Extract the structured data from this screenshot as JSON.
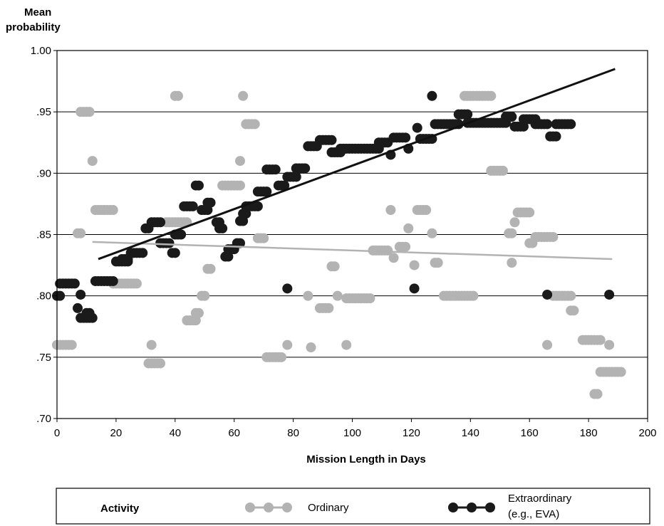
{
  "chart_data": {
    "type": "scatter",
    "title": "",
    "ylabel_line1": "Mean",
    "ylabel_line2": "probability",
    "xlabel": "Mission Length in Days",
    "xlim": [
      0,
      200
    ],
    "ylim": [
      0.7,
      1.0
    ],
    "x_ticks": [
      0,
      20,
      40,
      60,
      80,
      100,
      120,
      140,
      160,
      180,
      200
    ],
    "y_ticks": [
      0.7,
      0.75,
      0.8,
      0.85,
      0.9,
      0.95,
      1.0
    ],
    "x_tick_labels": [
      "0",
      "20",
      "40",
      "60",
      "80",
      "100",
      "120",
      "140",
      "160",
      "180",
      "200"
    ],
    "y_tick_labels": [
      ".70",
      ".75",
      ".80",
      ".85",
      ".90",
      ".95",
      "1.00"
    ],
    "grid": "horizontal",
    "legend": {
      "placement": "bottom",
      "title": "Activity",
      "ordinary_label": "Ordinary",
      "extraordinary_label_line1": "Extraordinary",
      "extraordinary_label_line2": "(e.g., EVA)"
    },
    "colors": {
      "ordinary": "#b3b3b3",
      "extraordinary": "#1a1a1a"
    },
    "series": [
      {
        "name": "Ordinary",
        "runs": [
          [
            0,
            5,
            0.76
          ],
          [
            8,
            11,
            0.95
          ],
          [
            7,
            8,
            0.851
          ],
          [
            12,
            12,
            0.91
          ],
          [
            13,
            19,
            0.87
          ],
          [
            19,
            27,
            0.81
          ],
          [
            31,
            35,
            0.745
          ],
          [
            32,
            32,
            0.76
          ],
          [
            40,
            41,
            0.963
          ],
          [
            37,
            44,
            0.86
          ],
          [
            44,
            47,
            0.78
          ],
          [
            47,
            48,
            0.786
          ],
          [
            49,
            50,
            0.8
          ],
          [
            51,
            52,
            0.822
          ],
          [
            56,
            62,
            0.89
          ],
          [
            62,
            62,
            0.91
          ],
          [
            63,
            63,
            0.963
          ],
          [
            64,
            67,
            0.94
          ],
          [
            68,
            70,
            0.847
          ],
          [
            71,
            76,
            0.75
          ],
          [
            78,
            78,
            0.76
          ],
          [
            85,
            85,
            0.8
          ],
          [
            86,
            86,
            0.758
          ],
          [
            89,
            92,
            0.79
          ],
          [
            93,
            94,
            0.824
          ],
          [
            95,
            95,
            0.8
          ],
          [
            98,
            98,
            0.76
          ],
          [
            98,
            106,
            0.798
          ],
          [
            107,
            112,
            0.837
          ],
          [
            113,
            113,
            0.87
          ],
          [
            114,
            114,
            0.831
          ],
          [
            116,
            118,
            0.84
          ],
          [
            119,
            119,
            0.855
          ],
          [
            121,
            121,
            0.825
          ],
          [
            122,
            125,
            0.87
          ],
          [
            127,
            127,
            0.851
          ],
          [
            128,
            129,
            0.827
          ],
          [
            131,
            141,
            0.8
          ],
          [
            138,
            147,
            0.963
          ],
          [
            147,
            151,
            0.902
          ],
          [
            153,
            154,
            0.851
          ],
          [
            154,
            154,
            0.827
          ],
          [
            155,
            155,
            0.86
          ],
          [
            156,
            160,
            0.868
          ],
          [
            160,
            161,
            0.843
          ],
          [
            162,
            168,
            0.848
          ],
          [
            166,
            166,
            0.76
          ],
          [
            168,
            174,
            0.8
          ],
          [
            174,
            175,
            0.788
          ],
          [
            178,
            184,
            0.764
          ],
          [
            182,
            183,
            0.72
          ],
          [
            184,
            191,
            0.738
          ],
          [
            187,
            187,
            0.76
          ]
        ],
        "trend": [
          [
            12,
            0.844
          ],
          [
            188,
            0.83
          ]
        ]
      },
      {
        "name": "Extraordinary (e.g., EVA)",
        "runs": [
          [
            0,
            1,
            0.8
          ],
          [
            1,
            6,
            0.81
          ],
          [
            7,
            7,
            0.79
          ],
          [
            8,
            8,
            0.801
          ],
          [
            8,
            12,
            0.782
          ],
          [
            10,
            11,
            0.786
          ],
          [
            13,
            19,
            0.812
          ],
          [
            20,
            24,
            0.828
          ],
          [
            22,
            24,
            0.83
          ],
          [
            25,
            29,
            0.835
          ],
          [
            30,
            31,
            0.855
          ],
          [
            32,
            35,
            0.86
          ],
          [
            35,
            38,
            0.843
          ],
          [
            39,
            40,
            0.835
          ],
          [
            40,
            42,
            0.85
          ],
          [
            43,
            46,
            0.873
          ],
          [
            47,
            48,
            0.89
          ],
          [
            49,
            51,
            0.87
          ],
          [
            51,
            52,
            0.876
          ],
          [
            54,
            55,
            0.86
          ],
          [
            55,
            56,
            0.855
          ],
          [
            57,
            58,
            0.832
          ],
          [
            58,
            60,
            0.838
          ],
          [
            61,
            62,
            0.843
          ],
          [
            62,
            63,
            0.861
          ],
          [
            63,
            64,
            0.867
          ],
          [
            64,
            68,
            0.873
          ],
          [
            68,
            71,
            0.885
          ],
          [
            71,
            74,
            0.903
          ],
          [
            75,
            77,
            0.89
          ],
          [
            78,
            78,
            0.806
          ],
          [
            78,
            81,
            0.897
          ],
          [
            81,
            84,
            0.904
          ],
          [
            85,
            88,
            0.922
          ],
          [
            89,
            93,
            0.927
          ],
          [
            93,
            96,
            0.917
          ],
          [
            96,
            109,
            0.92
          ],
          [
            109,
            112,
            0.925
          ],
          [
            113,
            113,
            0.915
          ],
          [
            114,
            118,
            0.929
          ],
          [
            119,
            119,
            0.92
          ],
          [
            121,
            121,
            0.806
          ],
          [
            122,
            122,
            0.937
          ],
          [
            123,
            127,
            0.928
          ],
          [
            127,
            127,
            0.963
          ],
          [
            128,
            136,
            0.94
          ],
          [
            136,
            139,
            0.948
          ],
          [
            139,
            152,
            0.941
          ],
          [
            152,
            154,
            0.946
          ],
          [
            155,
            158,
            0.938
          ],
          [
            158,
            162,
            0.944
          ],
          [
            162,
            166,
            0.94
          ],
          [
            166,
            166,
            0.801
          ],
          [
            167,
            169,
            0.93
          ],
          [
            169,
            174,
            0.94
          ],
          [
            187,
            187,
            0.801
          ]
        ],
        "trend": [
          [
            14,
            0.83
          ],
          [
            189,
            0.985
          ]
        ]
      }
    ]
  }
}
